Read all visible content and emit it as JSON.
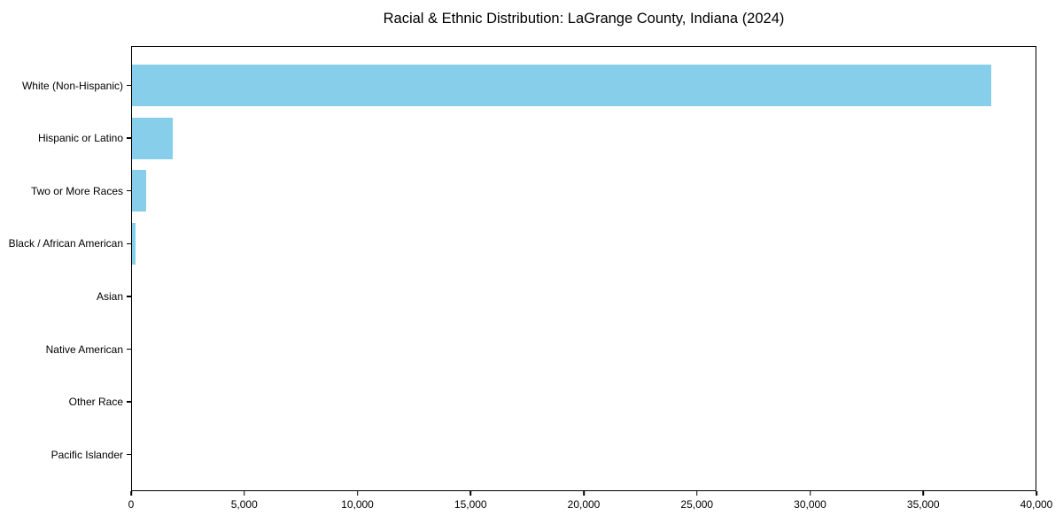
{
  "chart": {
    "title": "Racial & Ethnic Distribution: LaGrange County, Indiana (2024)"
  },
  "chart_data": {
    "type": "bar",
    "orientation": "horizontal",
    "title": "Racial & Ethnic Distribution: LaGrange County, Indiana (2024)",
    "categories": [
      "White (Non-Hispanic)",
      "Hispanic or Latino",
      "Two or More Races",
      "Black / African American",
      "Asian",
      "Native American",
      "Other Race",
      "Pacific Islander"
    ],
    "values": [
      38000,
      1850,
      670,
      200,
      35,
      30,
      20,
      10
    ],
    "bar_color": "#87CEEB",
    "xlabel": "",
    "ylabel": "",
    "xlim": [
      0,
      40000
    ],
    "xticks": [
      0,
      5000,
      10000,
      15000,
      20000,
      25000,
      30000,
      35000,
      40000
    ],
    "xtick_labels": [
      "0",
      "5,000",
      "10,000",
      "15,000",
      "20,000",
      "25,000",
      "30,000",
      "35,000",
      "40,000"
    ],
    "grid": false,
    "legend": false,
    "background": "#ffffff",
    "first_category_position": "top"
  }
}
